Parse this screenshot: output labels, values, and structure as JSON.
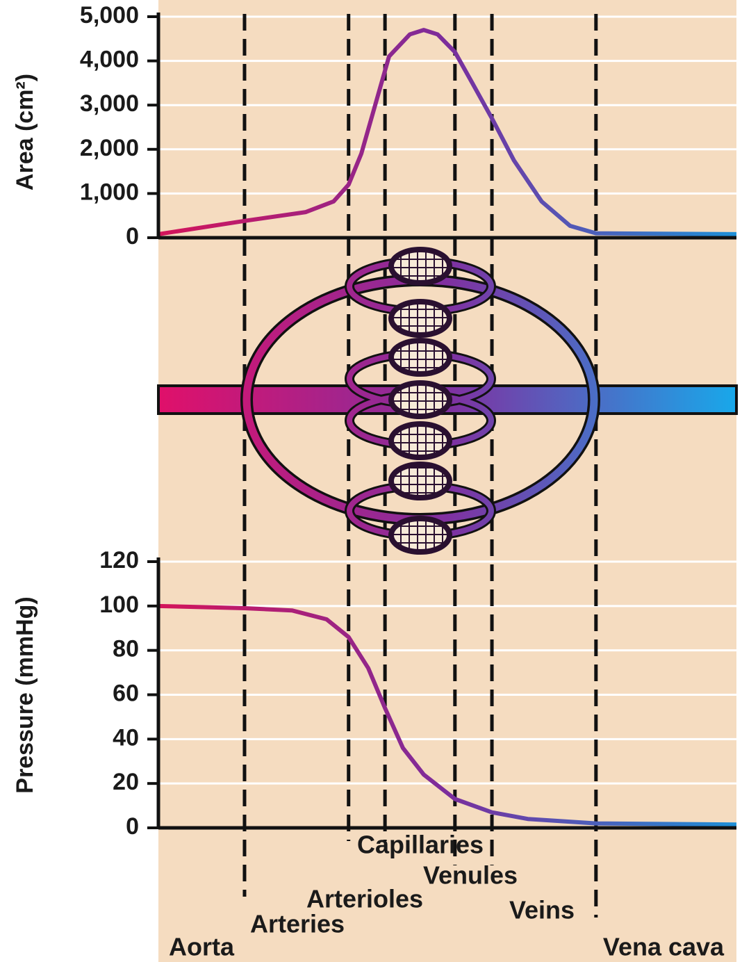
{
  "chart_data": [
    {
      "type": "line",
      "y_label": "Area (cm²)",
      "x": [
        0,
        14.9,
        25.5,
        30.3,
        32.9,
        35.1,
        37.5,
        39.9,
        43.5,
        45.9,
        48.3,
        51.3,
        54.3,
        57.7,
        61.5,
        66.3,
        71.2,
        75.7,
        100
      ],
      "values": [
        80,
        380,
        580,
        820,
        1200,
        1900,
        3000,
        4100,
        4600,
        4700,
        4600,
        4200,
        3500,
        2700,
        1750,
        820,
        270,
        100,
        80
      ],
      "xlim": [
        0,
        100
      ],
      "ylim": [
        0,
        5000
      ],
      "yticks": [
        0,
        {
          "value": 1000,
          "label": "1,000"
        },
        {
          "value": 2000,
          "label": "2,000"
        },
        {
          "value": 3000,
          "label": "3,000"
        },
        {
          "value": 4000,
          "label": "4,000"
        },
        {
          "value": 5000,
          "label": "5,000"
        }
      ],
      "grid": true,
      "colors": [
        "#d4145a",
        "#7b2d9c",
        "#1e90d8"
      ]
    },
    {
      "type": "line",
      "y_label": "Pressure (mmHg)",
      "x": [
        0,
        14.9,
        23.1,
        29.1,
        32.9,
        36.3,
        39.2,
        42.3,
        45.9,
        51.3,
        57.7,
        63.9,
        75.7,
        100
      ],
      "values": [
        100,
        99,
        98,
        94,
        86,
        72,
        54,
        36,
        24,
        13,
        7,
        4,
        2,
        1.5
      ],
      "xlim": [
        0,
        100
      ],
      "ylim": [
        0,
        120
      ],
      "yticks": [
        0,
        20,
        40,
        60,
        80,
        100,
        120
      ],
      "grid": true,
      "colors": [
        "#d4145a",
        "#7b2d9c",
        "#1e90d8"
      ]
    }
  ],
  "segments": {
    "labels": [
      "Aorta",
      "Arteries",
      "Arterioles",
      "Capillaries",
      "Venules",
      "Veins",
      "Vena cava"
    ],
    "boundaries": [
      14.9,
      32.9,
      39.2,
      51.3,
      57.7,
      75.7
    ]
  }
}
